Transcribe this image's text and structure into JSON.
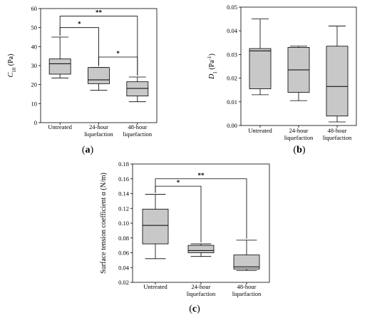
{
  "chart_data": [
    {
      "type": "box",
      "panel_label": "(a)",
      "ylabel": "C10 (Pa)",
      "ylim": [
        0,
        60
      ],
      "yticks": [
        "0",
        "10",
        "20",
        "30",
        "40",
        "50",
        "60"
      ],
      "categories": [
        "Untreated",
        "24-hour liquefaction",
        "48-hour liquefaction"
      ],
      "boxes": [
        {
          "whisker_low": 23.5,
          "q1": 25.5,
          "median": 31,
          "q3": 33.5,
          "whisker_high": 45
        },
        {
          "whisker_low": 17,
          "q1": 20.5,
          "median": 22.5,
          "q3": 29,
          "whisker_high": 29
        },
        {
          "whisker_low": 11,
          "q1": 14,
          "median": 18,
          "q3": 21.5,
          "whisker_high": 24
        }
      ],
      "significance": [
        {
          "from": 0,
          "to": 2,
          "label": "**",
          "y": 56
        },
        {
          "from": 0,
          "to": 1,
          "label": "*",
          "y": 50
        },
        {
          "from": 1,
          "to": 2,
          "label": "*",
          "y": 34.5
        }
      ]
    },
    {
      "type": "box",
      "panel_label": "(b)",
      "ylabel": "D1 (Pa-1)",
      "ylim": [
        0,
        0.05
      ],
      "yticks": [
        "0.00",
        "0.01",
        "0.02",
        "0.03",
        "0.04",
        "0.05"
      ],
      "categories": [
        "Untreated",
        "24-hour liquefaction",
        "48-hour liquefaction"
      ],
      "boxes": [
        {
          "whisker_low": 0.013,
          "q1": 0.0155,
          "median": 0.0315,
          "q3": 0.0325,
          "whisker_high": 0.045
        },
        {
          "whisker_low": 0.0105,
          "q1": 0.014,
          "median": 0.0235,
          "q3": 0.033,
          "whisker_high": 0.0335
        },
        {
          "whisker_low": 0.0015,
          "q1": 0.004,
          "median": 0.0165,
          "q3": 0.0335,
          "whisker_high": 0.042
        }
      ],
      "significance": []
    },
    {
      "type": "box",
      "panel_label": "(c)",
      "ylabel": "Surface tension coefficient α (N/m)",
      "ylim": [
        0.02,
        0.18
      ],
      "yticks": [
        "0.02",
        "0.04",
        "0.06",
        "0.08",
        "0.10",
        "0.12",
        "0.14",
        "0.16",
        "0.18"
      ],
      "categories": [
        "Untreated",
        "24-hour liquefaction",
        "48-hour liquefaction"
      ],
      "boxes": [
        {
          "whisker_low": 0.052,
          "q1": 0.072,
          "median": 0.097,
          "q3": 0.119,
          "whisker_high": 0.139
        },
        {
          "whisker_low": 0.055,
          "q1": 0.06,
          "median": 0.063,
          "q3": 0.07,
          "whisker_high": 0.072
        },
        {
          "whisker_low": 0.036,
          "q1": 0.038,
          "median": 0.041,
          "q3": 0.057,
          "whisker_high": 0.077
        }
      ],
      "significance": [
        {
          "from": 0,
          "to": 2,
          "label": "**",
          "y": 0.16
        },
        {
          "from": 0,
          "to": 1,
          "label": "*",
          "y": 0.15
        }
      ]
    }
  ]
}
